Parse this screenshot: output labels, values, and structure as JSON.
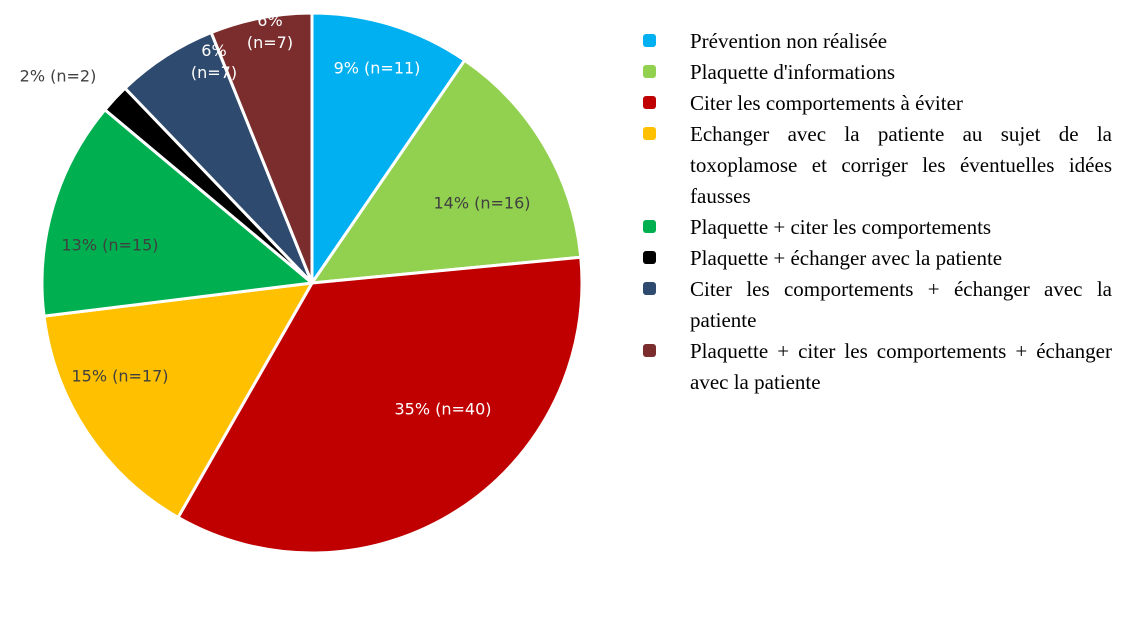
{
  "chart_data": {
    "type": "pie",
    "categories": [
      "Prévention non réalisée",
      "Plaquette d'informations",
      "Citer les comportements à éviter",
      "Echanger avec la patiente au sujet de la toxoplamose et corriger les éventuelles idées fausses",
      "Plaquette + citer les comportements",
      "Plaquette + échanger avec la patiente",
      "Citer les comportements + échanger avec la patiente",
      "Plaquette + citer les comportements + échanger avec la patiente"
    ],
    "values": [
      11,
      16,
      40,
      17,
      15,
      2,
      7,
      7
    ],
    "value_labels": [
      "9% (n=11)",
      "14% (n=16)",
      "35% (n=40)",
      "15% (n=17)",
      "13% (n=15)",
      "2% (n=2)",
      "6% (n=7)",
      "6% (n=7)"
    ],
    "colors": [
      "#00b0f0",
      "#92d050",
      "#c00000",
      "#ffc000",
      "#00b050",
      "#000000",
      "#2e4a6e",
      "#7b2c2c"
    ],
    "legend": "right"
  }
}
